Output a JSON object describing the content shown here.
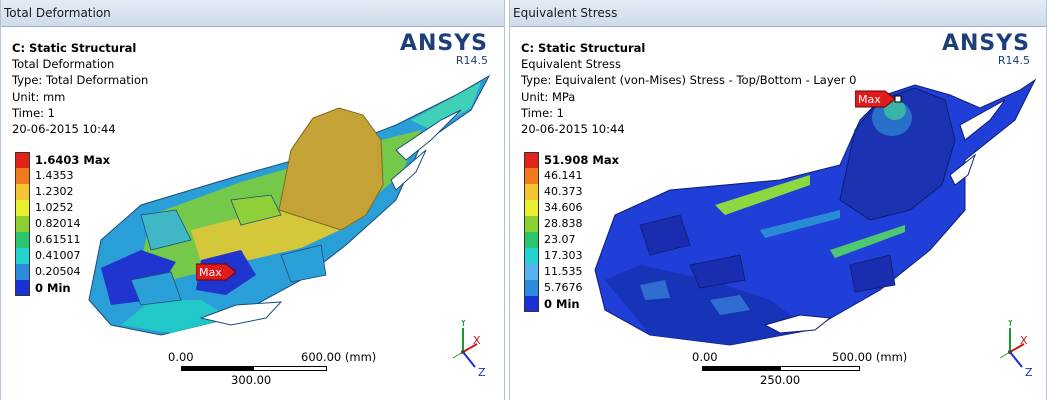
{
  "left_panel": {
    "window_title": "Total Deformation",
    "info": {
      "system": "C: Static Structural",
      "result": "Total Deformation",
      "type": "Type: Total Deformation",
      "unit": "Unit: mm",
      "time": "Time: 1",
      "date": "20-06-2015 10:44"
    },
    "brand": {
      "name": "ANSYS",
      "version": "R14.5"
    },
    "legend": [
      {
        "label": "1.6403 Max",
        "color": "#e2231a"
      },
      {
        "label": "1.4353",
        "color": "#f07a1c"
      },
      {
        "label": "1.2302",
        "color": "#f3c531"
      },
      {
        "label": "1.0252",
        "color": "#e9ef2e"
      },
      {
        "label": "0.82014",
        "color": "#8ccf30"
      },
      {
        "label": "0.61511",
        "color": "#29c56c"
      },
      {
        "label": "0.41007",
        "color": "#22d3d0"
      },
      {
        "label": "0.20504",
        "color": "#2c8bdc"
      },
      {
        "label": "0 Min",
        "color": "#1b2fd6"
      }
    ],
    "max_marker": "Max",
    "scale": {
      "start": "0.00",
      "end": "600.00 (mm)",
      "mid": "300.00"
    },
    "triad": {
      "x": "X",
      "y": "Y",
      "z": "Z"
    }
  },
  "right_panel": {
    "window_title": "Equivalent Stress",
    "info": {
      "system": "C: Static Structural",
      "result": "Equivalent Stress",
      "type": "Type: Equivalent (von-Mises) Stress - Top/Bottom - Layer 0",
      "unit": "Unit: MPa",
      "time": "Time: 1",
      "date": "20-06-2015 10:44"
    },
    "brand": {
      "name": "ANSYS",
      "version": "R14.5"
    },
    "legend": [
      {
        "label": "51.908 Max",
        "color": "#e2231a"
      },
      {
        "label": "46.141",
        "color": "#f07a1c"
      },
      {
        "label": "40.373",
        "color": "#f3c531"
      },
      {
        "label": "34.606",
        "color": "#e9ef2e"
      },
      {
        "label": "28.838",
        "color": "#8ccf30"
      },
      {
        "label": "23.07",
        "color": "#29c56c"
      },
      {
        "label": "17.303",
        "color": "#22d3d0"
      },
      {
        "label": "11.535",
        "color": "#58b2ee"
      },
      {
        "label": "5.7676",
        "color": "#2c8bdc"
      },
      {
        "label": "0 Min",
        "color": "#1b2fd6"
      }
    ],
    "max_marker": "Max",
    "scale": {
      "start": "0.00",
      "end": "500.00 (mm)",
      "mid": "250.00"
    },
    "triad": {
      "x": "X",
      "y": "Y",
      "z": "Z"
    }
  }
}
